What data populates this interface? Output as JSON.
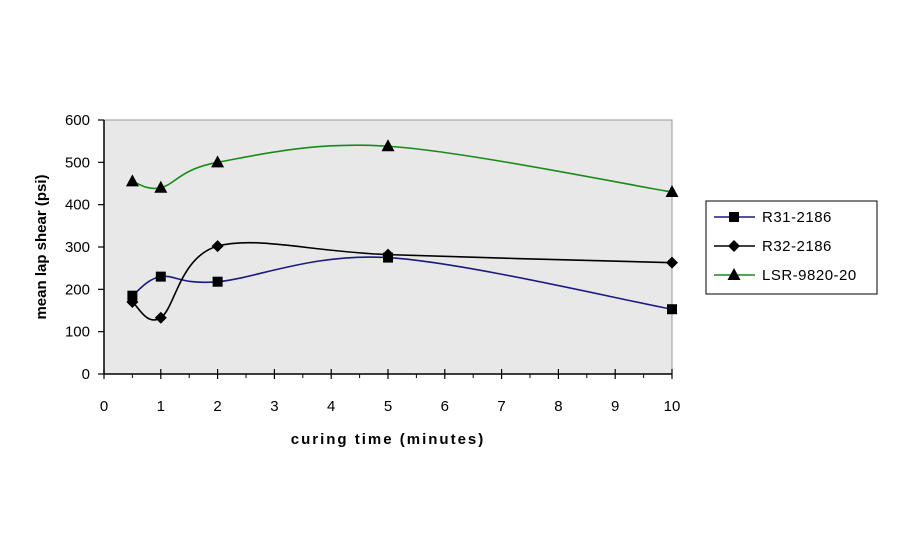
{
  "chart_data": {
    "type": "line",
    "title": "",
    "xlabel": "curing time (minutes)",
    "ylabel": "mean lap shear (psi)",
    "xlim": [
      0,
      10
    ],
    "ylim": [
      0,
      600
    ],
    "xticks": [
      0,
      1,
      2,
      3,
      4,
      5,
      6,
      7,
      8,
      9,
      10
    ],
    "yticks": [
      0,
      100,
      200,
      300,
      400,
      500,
      600
    ],
    "grid": false,
    "plot_background": "#e8e8e8",
    "legend_position": "right",
    "x": [
      0.5,
      1,
      2,
      5,
      10
    ],
    "series": [
      {
        "name": "R31-2186",
        "marker": "square",
        "color": "#1a1a80",
        "values": [
          185,
          230,
          218,
          275,
          153
        ]
      },
      {
        "name": "R32-2186",
        "marker": "diamond",
        "color": "#000000",
        "values": [
          170,
          133,
          302,
          282,
          263
        ]
      },
      {
        "name": "LSR-9820-20",
        "marker": "triangle",
        "color": "#1a8a1a",
        "values": [
          455,
          440,
          500,
          538,
          430
        ]
      }
    ]
  }
}
